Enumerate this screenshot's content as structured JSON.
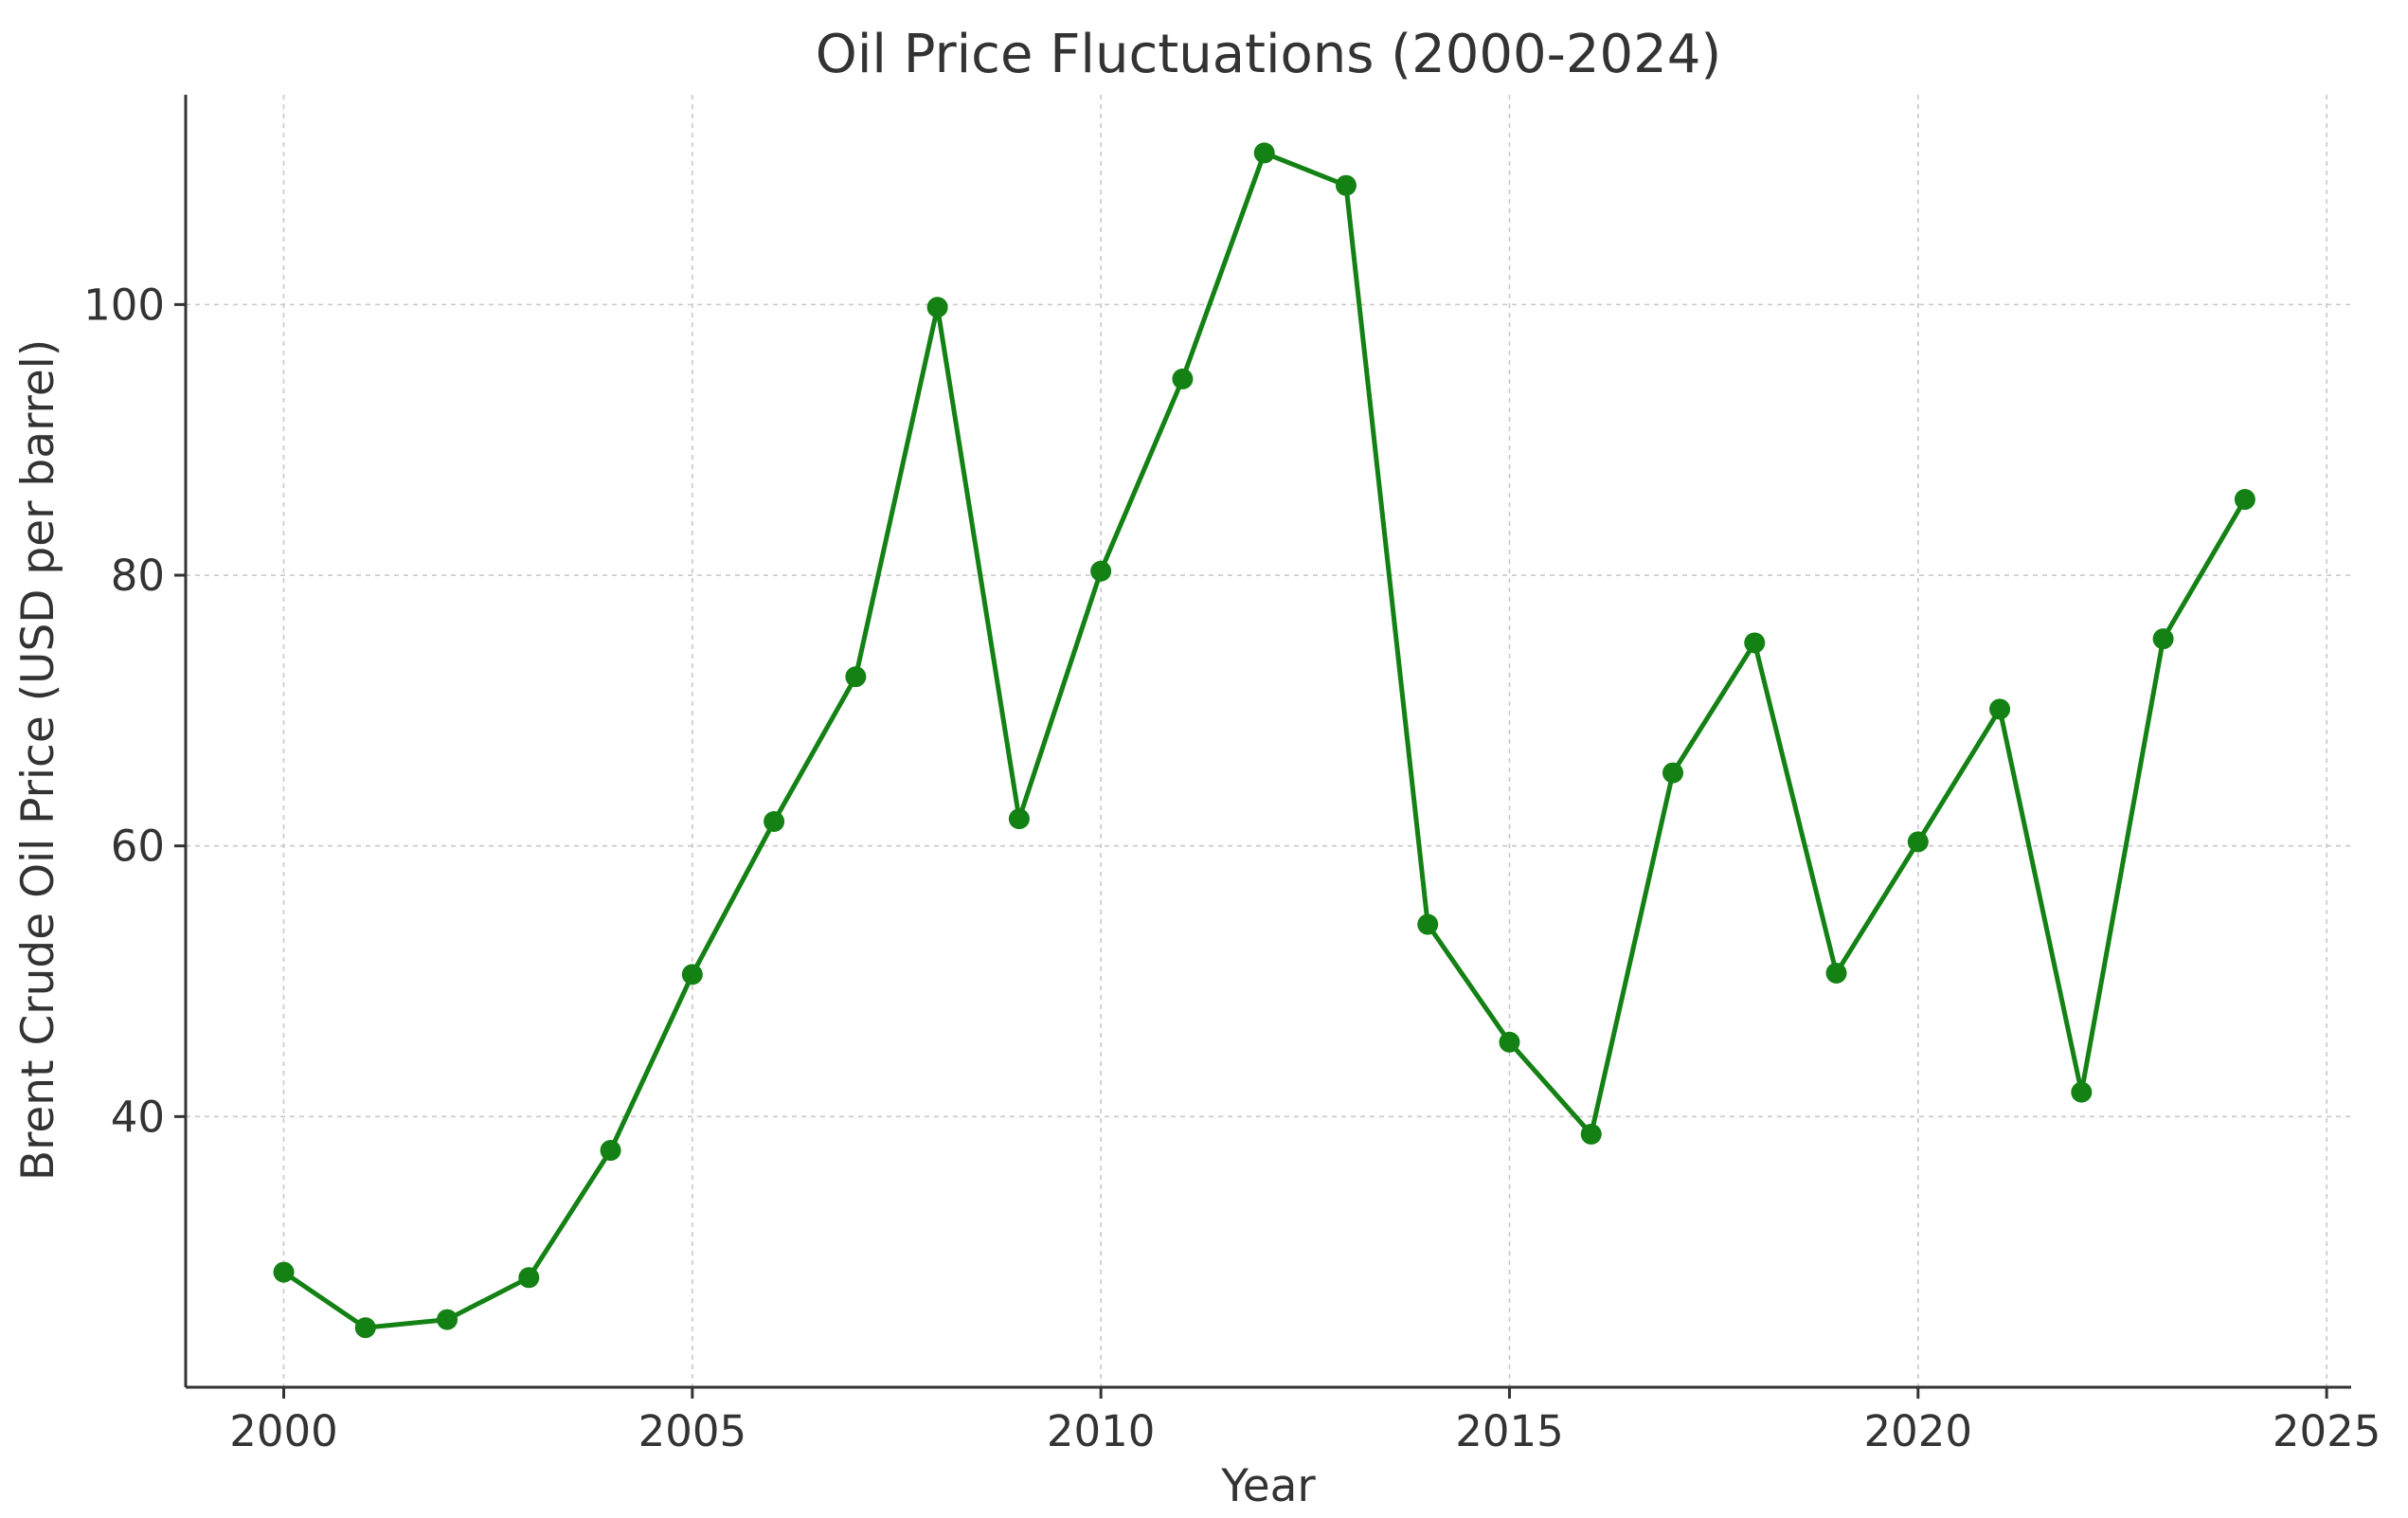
{
  "chart_data": {
    "type": "line",
    "title": "Oil Price Fluctuations (2000-2024)",
    "xlabel": "Year",
    "ylabel": "Brent Crude Oil Price (USD per barrel)",
    "x": [
      2000,
      2001,
      2002,
      2003,
      2004,
      2005,
      2006,
      2007,
      2008,
      2009,
      2010,
      2011,
      2012,
      2013,
      2014,
      2015,
      2016,
      2017,
      2018,
      2019,
      2020,
      2021,
      2022,
      2023,
      2024
    ],
    "series": [
      {
        "values": [
          28.5,
          24.4,
          25.0,
          28.1,
          37.5,
          50.5,
          61.8,
          72.5,
          99.8,
          62.0,
          80.3,
          94.5,
          111.2,
          108.8,
          54.2,
          45.5,
          38.7,
          65.4,
          75.0,
          50.6,
          60.3,
          70.1,
          41.8,
          75.3,
          85.6
        ],
        "color": "#138113"
      }
    ],
    "xlim": [
      1998.8,
      2025.3
    ],
    "ylim": [
      20.0,
      115.5
    ],
    "x_ticks": [
      2000,
      2005,
      2010,
      2015,
      2020,
      2025
    ],
    "y_ticks": [
      40,
      60,
      80,
      100
    ],
    "grid": true,
    "legend": "none",
    "marker": "circle"
  }
}
